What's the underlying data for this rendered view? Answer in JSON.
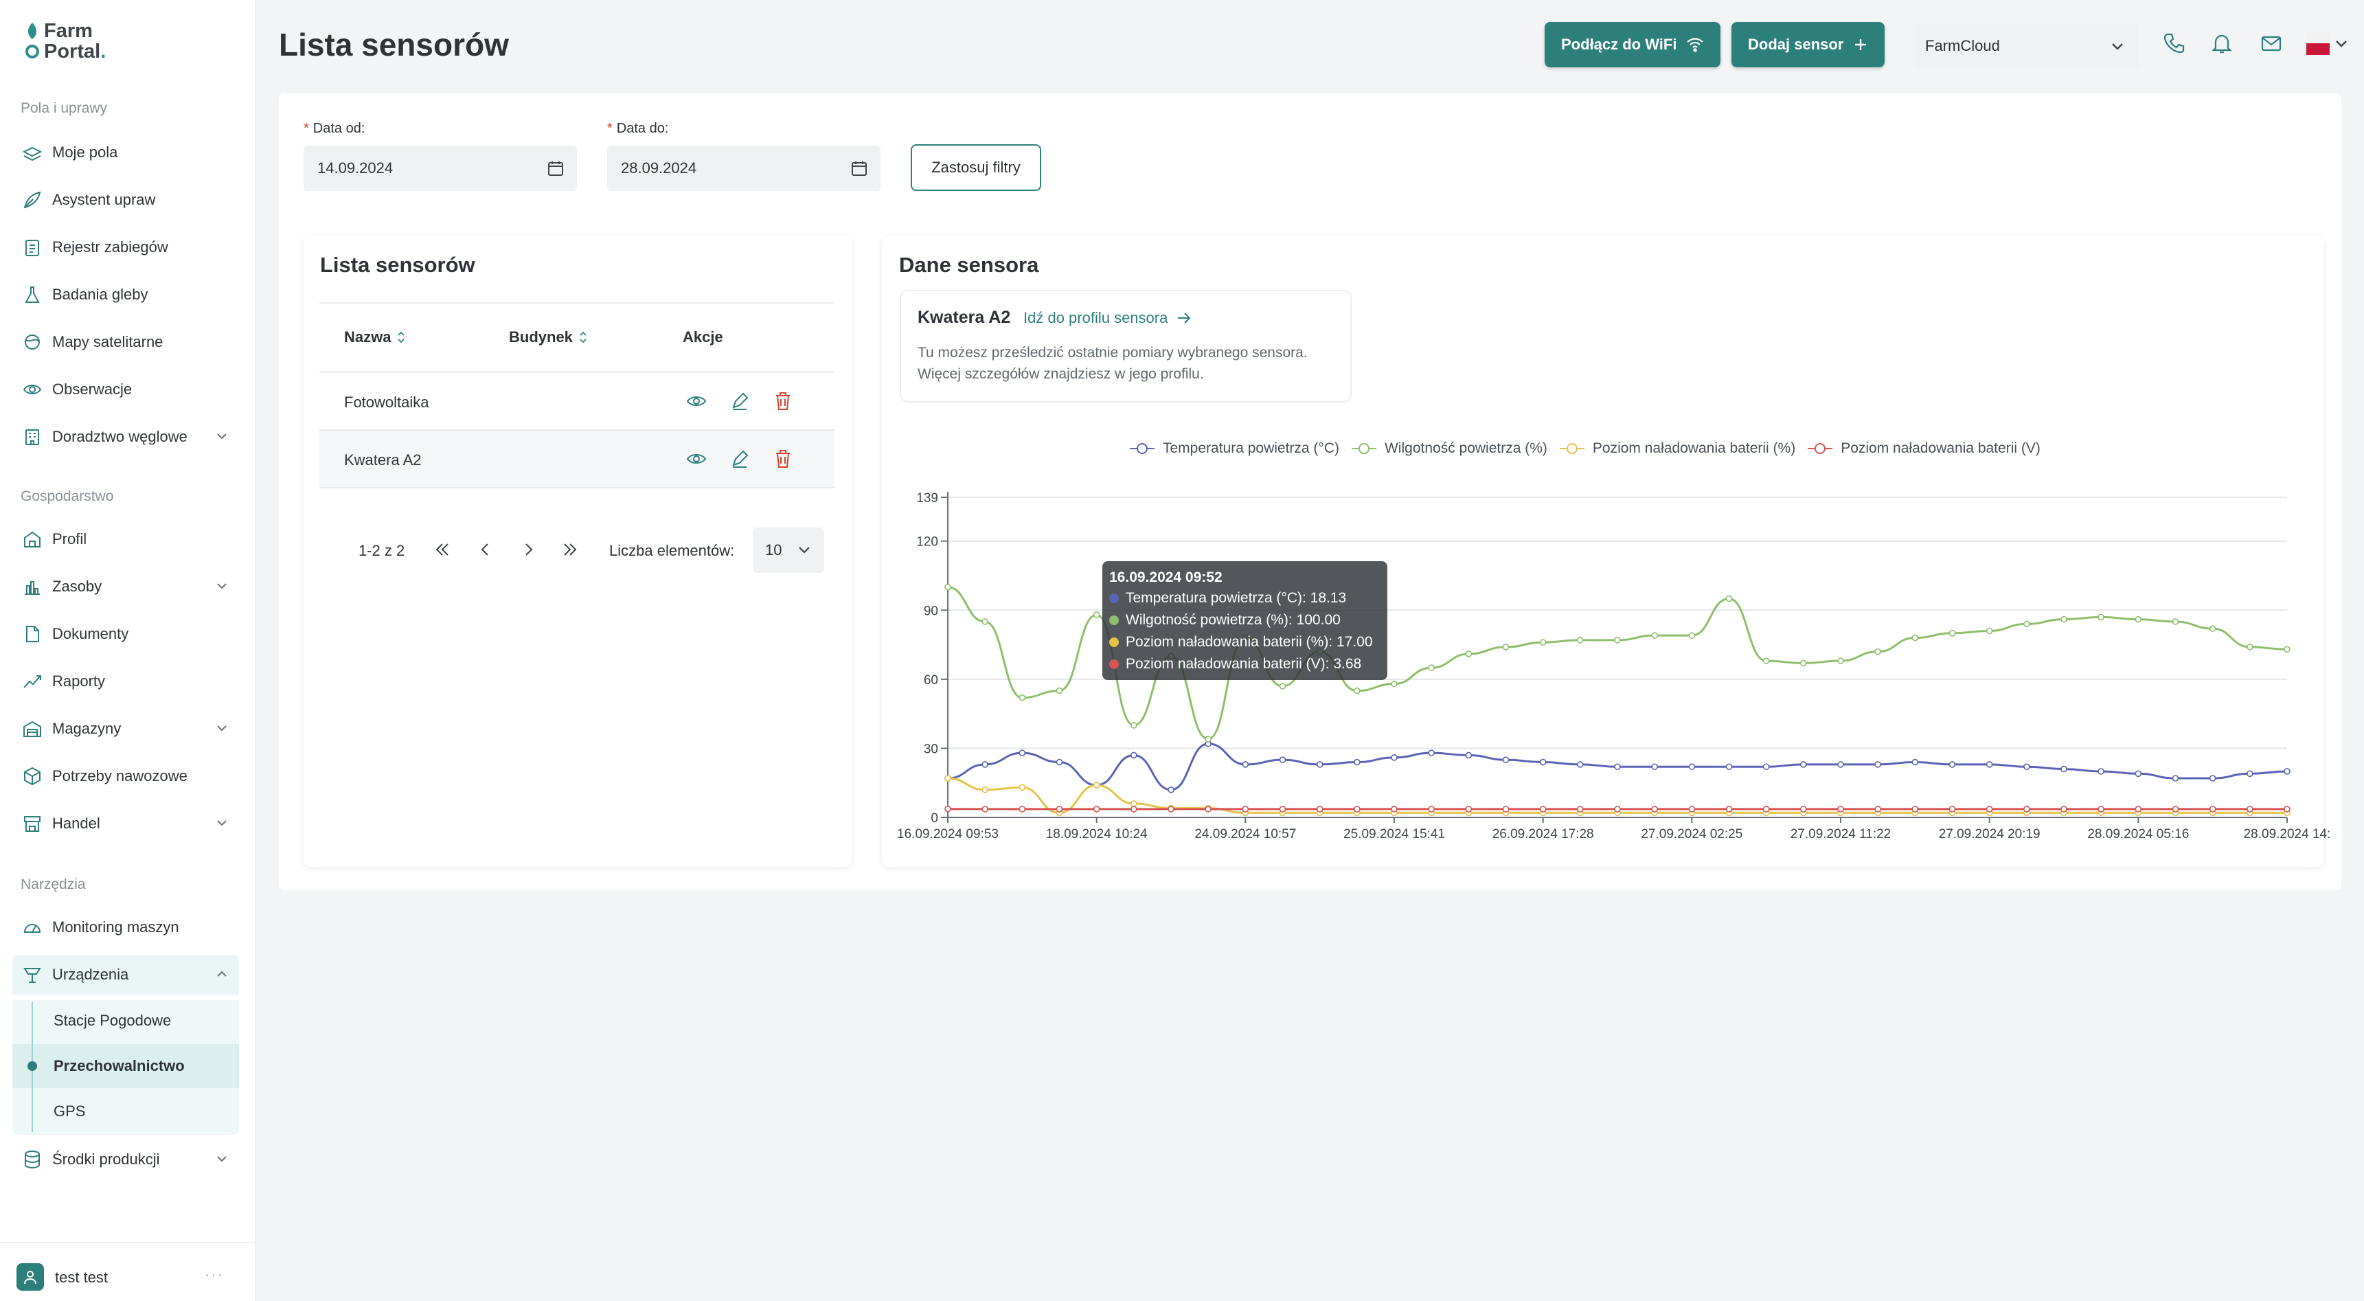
{
  "app": {
    "logo_line1": "Farm",
    "logo_line2": "Portal",
    "logo_dot": "."
  },
  "sidebar": {
    "section1": "Pola i uprawy",
    "section2": "Gospodarstwo",
    "section3": "Narzędzia",
    "items": [
      {
        "label": "Moje pola",
        "icon": "fields-icon"
      },
      {
        "label": "Asystent upraw",
        "icon": "leaf-icon"
      },
      {
        "label": "Rejestr zabiegów",
        "icon": "clipboard-icon"
      },
      {
        "label": "Badania gleby",
        "icon": "flask-icon"
      },
      {
        "label": "Mapy satelitarne",
        "icon": "satellite-icon"
      },
      {
        "label": "Obserwacje",
        "icon": "eye-icon"
      },
      {
        "label": "Doradztwo węglowe",
        "icon": "building-icon"
      },
      {
        "label": "Profil",
        "icon": "barn-icon"
      },
      {
        "label": "Zasoby",
        "icon": "chart-bars-icon"
      },
      {
        "label": "Dokumenty",
        "icon": "document-icon"
      },
      {
        "label": "Raporty",
        "icon": "trend-icon"
      },
      {
        "label": "Magazyny",
        "icon": "warehouse-icon"
      },
      {
        "label": "Potrzeby nawozowe",
        "icon": "cube-icon"
      },
      {
        "label": "Handel",
        "icon": "store-icon"
      },
      {
        "label": "Monitoring maszyn",
        "icon": "gauge-icon"
      },
      {
        "label": "Urządzenia",
        "icon": "device-icon"
      },
      {
        "label": "Środki produkcji",
        "icon": "database-icon"
      }
    ],
    "subitems": [
      "Stacje Pogodowe",
      "Przechowalnictwo",
      "GPS"
    ],
    "user": "test test",
    "user_menu": "···"
  },
  "header": {
    "title": "Lista sensorów",
    "wifi_button": "Podłącz do WiFi",
    "add_button": "Dodaj sensor",
    "farm_select": "FarmCloud",
    "accent": "#2d7f7c"
  },
  "filters": {
    "from_label": "Data od:",
    "from_value": "14.09.2024",
    "to_label": "Data do:",
    "to_value": "28.09.2024",
    "required_mark": "*",
    "apply_button": "Zastosuj filtry"
  },
  "sensor_list": {
    "title": "Lista sensorów",
    "columns": [
      "Nazwa",
      "Budynek",
      "Akcje"
    ],
    "rows": [
      {
        "name": "Fotowoltaika",
        "building": ""
      },
      {
        "name": "Kwatera A2",
        "building": ""
      }
    ],
    "pager_range": "1-2 z 2",
    "page_size_label": "Liczba elementów:",
    "page_size": "10"
  },
  "sensor_data": {
    "title": "Dane sensora",
    "sensor_name": "Kwatera A2",
    "profile_link": "Idź do profilu sensora",
    "description": "Tu możesz prześledzić ostatnie pomiary wybranego sensora. Więcej szczegółów znajdziesz w jego profilu."
  },
  "tooltip": {
    "title": "16.09.2024 09:52",
    "rows": [
      "Temperatura powietrza (°C): 18.13",
      "Wilgotność powietrza (%): 100.00",
      "Poziom naładowania baterii (%): 17.00",
      "Poziom naładowania baterii (V): 3.68"
    ]
  },
  "chart_data": {
    "type": "line",
    "ylim": [
      0,
      139
    ],
    "yticks": [
      0,
      30,
      60,
      90,
      120,
      139
    ],
    "xtick_labels": [
      "16.09.2024 09:53",
      "18.09.2024 10:24",
      "24.09.2024 10:57",
      "25.09.2024 15:41",
      "26.09.2024 17:28",
      "27.09.2024 02:25",
      "27.09.2024 11:22",
      "27.09.2024 20:19",
      "28.09.2024 05:16",
      "28.09.2024 14:"
    ],
    "grid": true,
    "legend_position": "top",
    "x": [
      0,
      0.25,
      0.5,
      0.75,
      1,
      1.25,
      1.5,
      1.75,
      2,
      2.25,
      2.5,
      2.75,
      3,
      3.25,
      3.5,
      3.75,
      4,
      4.25,
      4.5,
      4.75,
      5,
      5.25,
      5.5,
      5.75,
      6,
      6.25,
      6.5,
      6.75,
      7,
      7.25,
      7.5,
      7.75,
      8,
      8.25,
      8.5,
      8.75,
      9
    ],
    "series": [
      {
        "name": "Temperatura powietrza (°C)",
        "color": "#5b63b5",
        "values": [
          17,
          23,
          28,
          24,
          14,
          27,
          12,
          32,
          23,
          25,
          23,
          24,
          26,
          28,
          27,
          25,
          24,
          23,
          22,
          22,
          22,
          22,
          22,
          23,
          23,
          23,
          24,
          23,
          23,
          22,
          21,
          20,
          19,
          17,
          17,
          19,
          20
        ]
      },
      {
        "name": "Wilgotność powietrza (%)",
        "color": "#8fbe6c",
        "values": [
          100,
          85,
          52,
          55,
          88,
          40,
          70,
          34,
          78,
          57,
          72,
          55,
          58,
          65,
          71,
          74,
          76,
          77,
          77,
          79,
          79,
          95,
          68,
          67,
          68,
          72,
          78,
          80,
          81,
          84,
          86,
          87,
          86,
          85,
          82,
          74,
          73
        ]
      },
      {
        "name": "Poziom naładowania baterii (%)",
        "color": "#e5c24a",
        "values": [
          17,
          12,
          13,
          2,
          14,
          6,
          4,
          4,
          2,
          2,
          2,
          2,
          2,
          2,
          2,
          2,
          2,
          2,
          2,
          2,
          2,
          2,
          2,
          2,
          2,
          2,
          2,
          2,
          2,
          2,
          2,
          2,
          2,
          2,
          2,
          2,
          2
        ]
      },
      {
        "name": "Poziom naładowania baterii (V)",
        "color": "#d65454",
        "values": [
          3.68,
          3.6,
          3.6,
          3.6,
          3.6,
          3.6,
          3.6,
          3.6,
          3.6,
          3.6,
          3.6,
          3.6,
          3.6,
          3.6,
          3.6,
          3.6,
          3.6,
          3.6,
          3.6,
          3.6,
          3.6,
          3.6,
          3.6,
          3.6,
          3.6,
          3.6,
          3.6,
          3.6,
          3.6,
          3.6,
          3.6,
          3.6,
          3.6,
          3.6,
          3.6,
          3.6,
          3.6
        ]
      }
    ]
  }
}
